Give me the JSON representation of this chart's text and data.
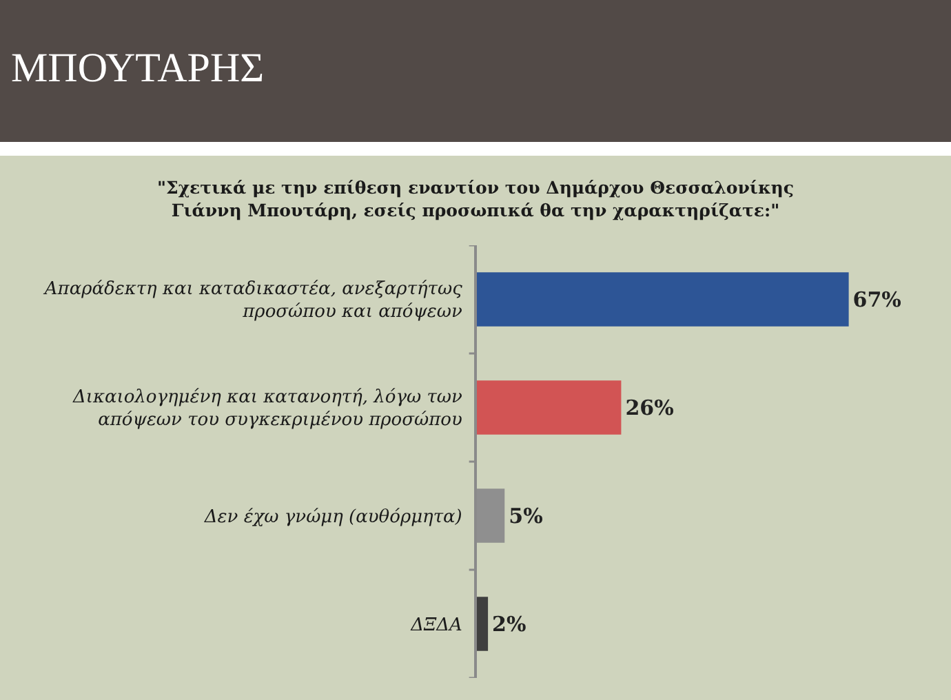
{
  "chart_data": {
    "type": "bar",
    "orientation": "horizontal",
    "title": "ΜΠΟΥΤΑΡΗΣ",
    "subtitle": "\"Σχετικά με την επίθεση εναντίον του Δημάρχου Θεσσαλονίκης Γιάννη Μπουτάρη, εσείς προσωπικά θα την χαρακτηρίζατε:\"",
    "categories": [
      "Απαράδεκτη και καταδικαστέα, ανεξαρτήτως προσώπου και απόψεων",
      "Δικαιολογημένη και κατανοητή, λόγω των απόψεων του συγκεκριμένου προσώπου",
      "Δεν έχω γνώμη (αυθόρμητα)",
      "ΔΞΔΑ"
    ],
    "values": [
      67,
      26,
      5,
      2
    ],
    "colors": [
      "#2d5596",
      "#d25454",
      "#8f8f8f",
      "#3f3f3f"
    ],
    "value_labels": [
      "67%",
      "26%",
      "5%",
      "2%"
    ],
    "tick_labels": "y"
  }
}
